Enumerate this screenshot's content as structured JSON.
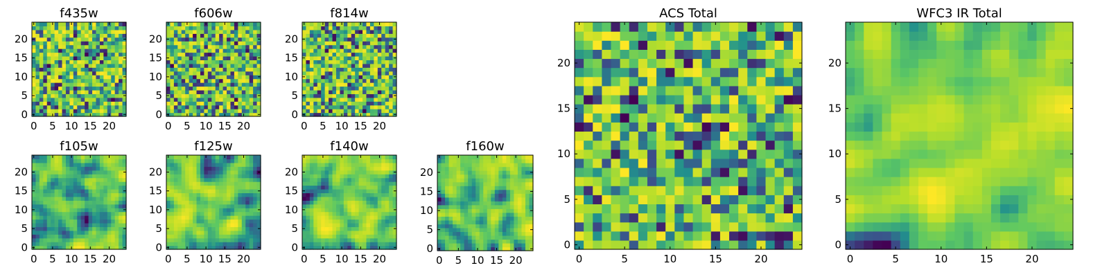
{
  "chart_data": [
    {
      "type": "heatmap",
      "title": "f435w",
      "xlim": [
        0,
        24
      ],
      "ylim": [
        0,
        24
      ],
      "xticks": [
        "0",
        "5",
        "10",
        "15",
        "20"
      ],
      "yticks": [
        "0",
        "5",
        "10",
        "15",
        "20"
      ],
      "colormap": "viridis",
      "seed": 11,
      "smooth": 0
    },
    {
      "type": "heatmap",
      "title": "f606w",
      "xlim": [
        0,
        24
      ],
      "ylim": [
        0,
        24
      ],
      "xticks": [
        "0",
        "5",
        "10",
        "15",
        "20"
      ],
      "yticks": [
        "0",
        "5",
        "10",
        "15",
        "20"
      ],
      "colormap": "viridis",
      "seed": 23,
      "smooth": 0
    },
    {
      "type": "heatmap",
      "title": "f814w",
      "xlim": [
        0,
        24
      ],
      "ylim": [
        0,
        24
      ],
      "xticks": [
        "0",
        "5",
        "10",
        "15",
        "20"
      ],
      "yticks": [
        "0",
        "5",
        "10",
        "15",
        "20"
      ],
      "colormap": "viridis",
      "seed": 37,
      "smooth": 0
    },
    {
      "type": "heatmap",
      "title": "f105w",
      "xlim": [
        0,
        24
      ],
      "ylim": [
        0,
        24
      ],
      "xticks": [
        "0",
        "5",
        "10",
        "15",
        "20"
      ],
      "yticks": [
        "0",
        "5",
        "10",
        "15",
        "20"
      ],
      "colormap": "viridis",
      "seed": 41,
      "smooth": 2
    },
    {
      "type": "heatmap",
      "title": "f125w",
      "xlim": [
        0,
        24
      ],
      "ylim": [
        0,
        24
      ],
      "xticks": [
        "0",
        "5",
        "10",
        "15",
        "20"
      ],
      "yticks": [
        "0",
        "5",
        "10",
        "15",
        "20"
      ],
      "colormap": "viridis",
      "seed": 53,
      "smooth": 2
    },
    {
      "type": "heatmap",
      "title": "f140w",
      "xlim": [
        0,
        24
      ],
      "ylim": [
        0,
        24
      ],
      "xticks": [
        "0",
        "5",
        "10",
        "15",
        "20"
      ],
      "yticks": [
        "0",
        "5",
        "10",
        "15",
        "20"
      ],
      "colormap": "viridis",
      "seed": 67,
      "smooth": 2
    },
    {
      "type": "heatmap",
      "title": "f160w",
      "xlim": [
        0,
        24
      ],
      "ylim": [
        0,
        24
      ],
      "xticks": [
        "0",
        "5",
        "10",
        "15",
        "20"
      ],
      "yticks": [
        "0",
        "5",
        "10",
        "15",
        "20"
      ],
      "colormap": "viridis",
      "seed": 79,
      "smooth": 2
    },
    {
      "type": "heatmap",
      "title": "ACS Total",
      "xlim": [
        0,
        24
      ],
      "ylim": [
        0,
        24
      ],
      "xticks": [
        "0",
        "5",
        "10",
        "15",
        "20"
      ],
      "yticks": [
        "0",
        "5",
        "10",
        "15",
        "20"
      ],
      "colormap": "viridis",
      "seed": 83,
      "smooth": 0
    },
    {
      "type": "heatmap",
      "title": "WFC3 IR Total",
      "xlim": [
        0,
        24
      ],
      "ylim": [
        0,
        24
      ],
      "xticks": [
        "0",
        "5",
        "10",
        "15",
        "20"
      ],
      "yticks": [
        "0",
        "5",
        "10",
        "15",
        "20"
      ],
      "colormap": "viridis",
      "seed": 97,
      "smooth": 2
    }
  ],
  "colors": {
    "viridis": [
      "#440154",
      "#3b528b",
      "#21908d",
      "#5dc863",
      "#b5de2b",
      "#fde725"
    ],
    "axis": "#000000",
    "background": "#ffffff"
  }
}
